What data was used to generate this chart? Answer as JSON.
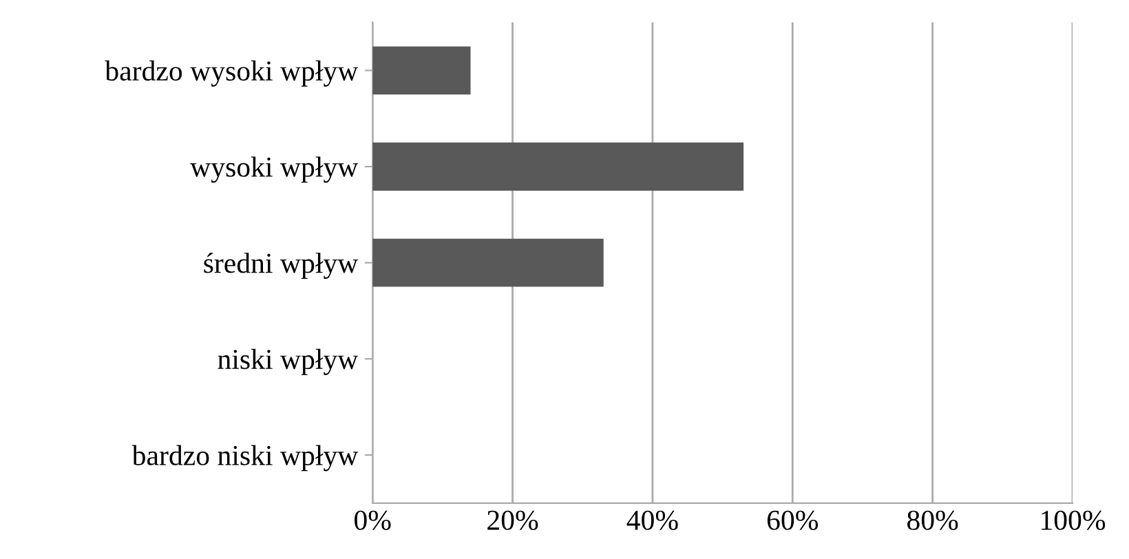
{
  "chart_data": {
    "type": "bar",
    "orientation": "horizontal",
    "categories": [
      "bardzo wysoki wpływ",
      "wysoki wpływ",
      "średni wpływ",
      "niski wpływ",
      "bardzo niski wpływ"
    ],
    "values": [
      14,
      53,
      33,
      0,
      0
    ],
    "color": "#595959",
    "xlim": [
      0,
      100
    ],
    "xticks": [
      {
        "value": 0,
        "label": "0%"
      },
      {
        "value": 20,
        "label": "20%"
      },
      {
        "value": 40,
        "label": "40%"
      },
      {
        "value": 60,
        "label": "60%"
      },
      {
        "value": 80,
        "label": "80%"
      },
      {
        "value": 100,
        "label": "100%"
      }
    ],
    "grid": "x"
  }
}
